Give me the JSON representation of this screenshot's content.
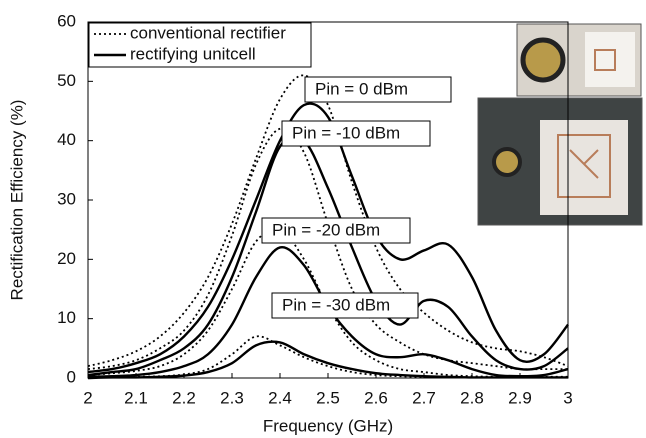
{
  "chart_data": {
    "type": "line",
    "x_label": "Frequency (GHz)",
    "y_label": "Rectification Efficiency (%)",
    "xlim": [
      2,
      3
    ],
    "xticks": [
      2,
      2.1,
      2.2,
      2.3,
      2.4,
      2.5,
      2.6,
      2.7,
      2.8,
      2.9,
      3
    ],
    "ylim": [
      0,
      60
    ],
    "yticks": [
      0,
      10,
      20,
      30,
      40,
      50,
      60
    ],
    "grid": false,
    "legend": "upper left",
    "x": [
      2,
      2.05,
      2.1,
      2.15,
      2.2,
      2.25,
      2.3,
      2.35,
      2.4,
      2.45,
      2.5,
      2.55,
      2.6,
      2.65,
      2.7,
      2.75,
      2.8,
      2.85,
      2.9,
      2.95,
      3
    ],
    "series": [
      {
        "name": "conventional rectifier",
        "style": "dotted",
        "color": "#000000",
        "curves": [
          [
            2,
            3,
            4.5,
            7,
            11,
            17,
            26,
            37,
            47,
            51,
            46,
            33,
            22,
            15,
            11,
            8,
            6,
            5,
            4.5,
            3.5,
            2
          ],
          [
            1.5,
            2,
            3,
            5,
            8,
            14,
            24,
            36,
            42,
            38,
            26,
            15,
            9,
            6,
            4,
            3,
            2.5,
            2,
            1.5,
            1.5,
            1.5
          ],
          [
            0.5,
            0.8,
            1.2,
            2,
            4,
            8,
            15,
            23,
            25,
            20,
            12,
            6,
            3,
            1.5,
            1,
            0.5,
            0.3,
            0.2,
            0.2,
            0.2,
            0.2
          ],
          [
            0.1,
            0.1,
            0.2,
            0.3,
            0.6,
            1.5,
            4,
            7,
            5.5,
            3.5,
            2,
            1,
            0.5,
            0.3,
            0.2,
            0.1,
            0.1,
            0.1,
            0.1,
            0.1,
            0.1
          ]
        ]
      },
      {
        "name": "rectifying unitcell",
        "style": "solid",
        "color": "#000000",
        "curves": [
          [
            1,
            1.5,
            2.5,
            4,
            7,
            12,
            20,
            30,
            40,
            46,
            44,
            34,
            24,
            20,
            21.5,
            22.5,
            17,
            8,
            3,
            4,
            9
          ],
          [
            0.5,
            1,
            1.5,
            3,
            5,
            9,
            17,
            28,
            39,
            40,
            32,
            22,
            13,
            9,
            13,
            12,
            7,
            3,
            1.5,
            2,
            5
          ],
          [
            0.2,
            0.3,
            0.5,
            1,
            2,
            4,
            9,
            17,
            22,
            19,
            12,
            7,
            4,
            3.5,
            4,
            3,
            1.5,
            0.5,
            0.3,
            0.5,
            1.5
          ],
          [
            0,
            0.1,
            0.1,
            0.2,
            0.4,
            1,
            2.5,
            5.5,
            6,
            4,
            2.5,
            1.5,
            0.8,
            0.5,
            0.3,
            0.2,
            0.1,
            0.1,
            0.1,
            0.1,
            0.1
          ]
        ]
      }
    ],
    "annotations": [
      "Pin = 0 dBm",
      "Pin = -10 dBm",
      "Pin = -20 dBm",
      "Pin = -30 dBm"
    ]
  }
}
